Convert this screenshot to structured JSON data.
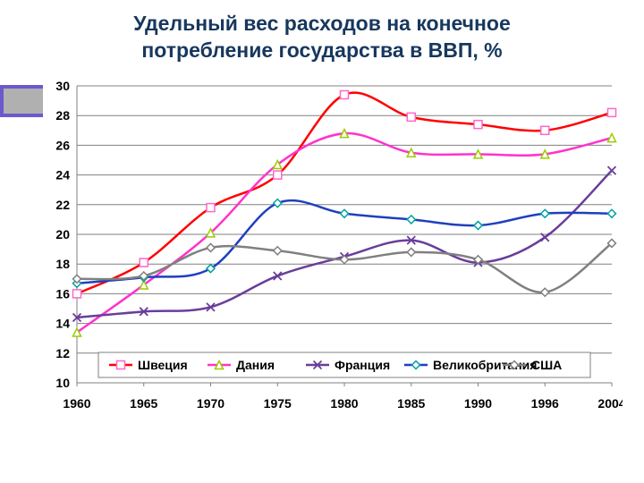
{
  "title_line1": "Удельный вес расходов на конечное",
  "title_line2": "потребление государства в ВВП, %",
  "chart": {
    "type": "line",
    "x_labels": [
      "1960",
      "1965",
      "1970",
      "1975",
      "1980",
      "1985",
      "1990",
      "1996",
      "2004"
    ],
    "ylim": [
      10,
      30
    ],
    "ytick_step": 2,
    "background_color": "#ffffff",
    "grid_color": "#808080",
    "border_color": "#808080",
    "title_color": "#17375e",
    "title_fontsize": 23,
    "axis_fontsize": 14,
    "line_width": 2.5,
    "marker_size": 4.5,
    "legend_box_color": "#808080",
    "series": [
      {
        "name": "Швеция",
        "color": "#ff0000",
        "marker_shape": "square",
        "marker_color": "#ff66cc",
        "values": [
          16.0,
          18.1,
          21.8,
          24.0,
          29.4,
          27.9,
          27.4,
          27.0,
          28.2
        ]
      },
      {
        "name": "Дания",
        "color": "#ff33cc",
        "marker_shape": "triangle",
        "marker_color": "#99cc00",
        "values": [
          13.4,
          16.6,
          20.1,
          24.7,
          26.8,
          25.5,
          25.4,
          25.4,
          26.5
        ]
      },
      {
        "name": "Франция",
        "color": "#6a3d9a",
        "marker_shape": "x",
        "marker_color": "#6a3d9a",
        "values": [
          14.4,
          14.8,
          15.1,
          17.2,
          18.5,
          19.6,
          18.1,
          19.8,
          24.3
        ]
      },
      {
        "name": "Великобритания",
        "color": "#1f3fbf",
        "marker_shape": "diamond",
        "marker_color": "#00a0a0",
        "values": [
          16.7,
          17.1,
          17.7,
          22.1,
          21.4,
          21.0,
          20.6,
          21.4,
          21.4
        ]
      },
      {
        "name": "США",
        "color": "#808080",
        "marker_shape": "diamond",
        "marker_color": "#808080",
        "values": [
          17.0,
          17.2,
          19.1,
          18.9,
          18.3,
          18.8,
          18.3,
          16.1,
          19.4
        ]
      }
    ]
  }
}
